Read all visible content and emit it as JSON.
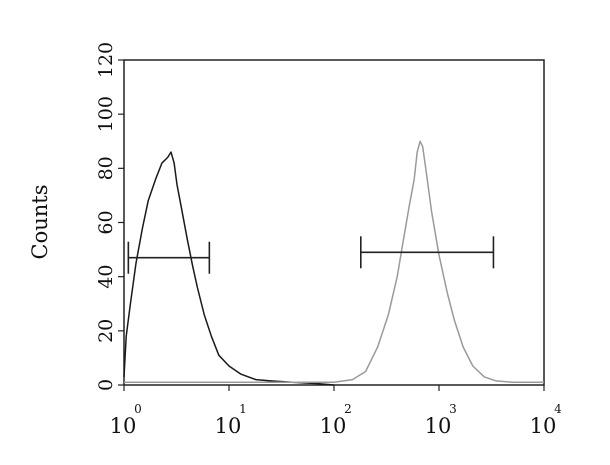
{
  "chart_data": {
    "type": "line",
    "title": "",
    "xlabel": "",
    "ylabel": "Counts",
    "x_scale": "log",
    "xlim": [
      1,
      10000
    ],
    "ylim": [
      0,
      120
    ],
    "grid": false,
    "legend": "none",
    "x_ticks": [
      {
        "base": "10",
        "exp": "0",
        "value": 1
      },
      {
        "base": "10",
        "exp": "1",
        "value": 10
      },
      {
        "base": "10",
        "exp": "2",
        "value": 100
      },
      {
        "base": "10",
        "exp": "3",
        "value": 1000
      },
      {
        "base": "10",
        "exp": "4",
        "value": 10000
      }
    ],
    "y_ticks": [
      "0",
      "20",
      "40",
      "60",
      "80",
      "100",
      "120"
    ],
    "series": [
      {
        "color": "#1a1a1a",
        "x": [
          1,
          1.05,
          1.15,
          1.3,
          1.5,
          1.7,
          2.0,
          2.3,
          2.6,
          2.8,
          3.0,
          3.2,
          3.5,
          4.0,
          4.5,
          5.0,
          5.8,
          6.8,
          8,
          10,
          13,
          18,
          25,
          40,
          70,
          100
        ],
        "y": [
          3,
          18,
          30,
          45,
          58,
          68,
          76,
          82,
          84,
          86,
          82,
          74,
          66,
          54,
          44,
          36,
          26,
          18,
          11,
          7,
          4,
          2,
          1.5,
          1,
          0.5,
          0
        ]
      },
      {
        "color": "#9a9a9a",
        "x": [
          1,
          10,
          50,
          100,
          150,
          200,
          260,
          330,
          400,
          460,
          520,
          580,
          620,
          660,
          700,
          760,
          850,
          1000,
          1200,
          1400,
          1700,
          2100,
          2700,
          3500,
          5000,
          10000
        ],
        "y": [
          1,
          1,
          1,
          1,
          2,
          5,
          14,
          26,
          40,
          54,
          66,
          76,
          86,
          90,
          88,
          78,
          64,
          48,
          34,
          24,
          14,
          7,
          3,
          1.5,
          1,
          1
        ]
      }
    ],
    "annotations": [
      {
        "type": "range_marker",
        "x_start": 1.1,
        "x_end": 6.5,
        "y": 47
      },
      {
        "type": "range_marker",
        "x_start": 180,
        "x_end": 3300,
        "y": 49
      }
    ]
  }
}
